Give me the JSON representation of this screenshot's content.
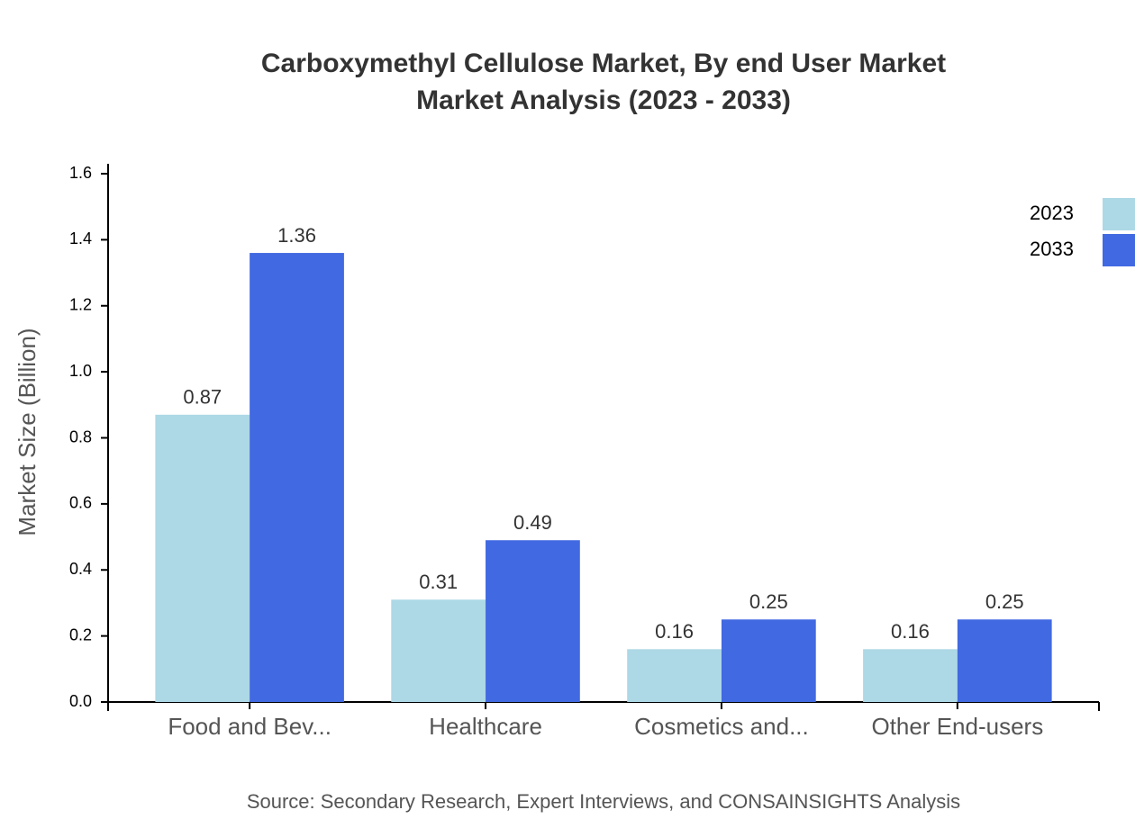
{
  "chart_data": {
    "type": "bar",
    "title": "Carboxymethyl Cellulose Market, By end User Market Market Analysis (2023 - 2033)",
    "y_label": "Market Size (Billion)",
    "source": "Source: Secondary Research, Expert Interviews, and CONSAINSIGHTS Analysis",
    "categories": [
      "Food and Bev...",
      "Healthcare",
      "Cosmetics and...",
      "Other End-users"
    ],
    "series": [
      {
        "name": "2023",
        "color": "#add8e6",
        "values": [
          0.87,
          0.31,
          0.16,
          0.16
        ]
      },
      {
        "name": "2033",
        "color": "#4169e1",
        "values": [
          1.36,
          0.49,
          0.25,
          0.25
        ]
      }
    ],
    "ylim": [
      0,
      1.63
    ],
    "yticks": [
      {
        "value": 0,
        "label": "0.0"
      },
      0.2,
      0.4,
      0.6,
      0.8,
      {
        "value": 1,
        "label": "1.0"
      },
      1.2,
      1.4,
      1.6
    ],
    "grid": false,
    "legend": "top-right"
  }
}
